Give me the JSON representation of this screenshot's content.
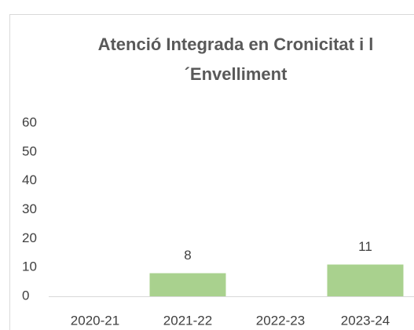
{
  "chart_data": {
    "type": "bar",
    "title": "Atenció Integrada en Cronicitat i l´Envelliment",
    "categories": [
      "2020-21",
      "2021-22",
      "2022-23",
      "2023-24"
    ],
    "values": [
      null,
      8,
      null,
      11
    ],
    "color": "#a9d18e",
    "ylim": [
      0,
      60
    ],
    "yticks": [
      0,
      10,
      20,
      30,
      40,
      50,
      60
    ],
    "grid": false
  }
}
